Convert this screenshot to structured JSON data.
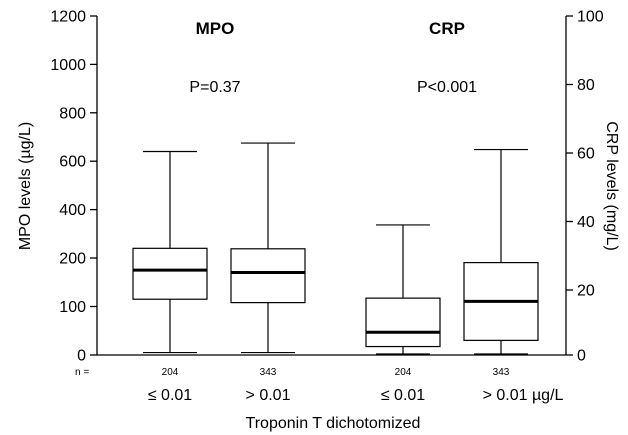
{
  "chart_data": {
    "type": "box",
    "xlabel": "Troponin T dichotomized",
    "n_prefix": "n =",
    "left_axis": {
      "label": "MPO levels (µg/L)",
      "ticks": [
        0,
        100,
        200,
        400,
        600,
        800,
        1000,
        1200
      ]
    },
    "right_axis": {
      "label": "CRP levels (mg/L)",
      "ticks": [
        0,
        20,
        40,
        60,
        80,
        100
      ]
    },
    "panels": [
      {
        "title": "MPO",
        "p_value": "P=0.37",
        "axis": "left",
        "groups": [
          {
            "label": "≤ 0.01",
            "n": "204",
            "min": 5,
            "q1": 115,
            "median": 175,
            "q3": 240,
            "max": 640
          },
          {
            "label": "> 0.01",
            "n": "343",
            "min": 5,
            "q1": 108,
            "median": 170,
            "q3": 238,
            "max": 675
          }
        ]
      },
      {
        "title": "CRP",
        "p_value": "P<0.001",
        "axis": "right",
        "groups": [
          {
            "label": "≤ 0.01",
            "n": "204",
            "min": 0.3,
            "q1": 2.6,
            "median": 7,
            "q3": 17.5,
            "max": 39
          },
          {
            "label": "> 0.01 µg/L",
            "n": "343",
            "min": 0.3,
            "q1": 4.5,
            "median": 16.5,
            "q3": 28,
            "max": 61
          }
        ]
      }
    ]
  }
}
